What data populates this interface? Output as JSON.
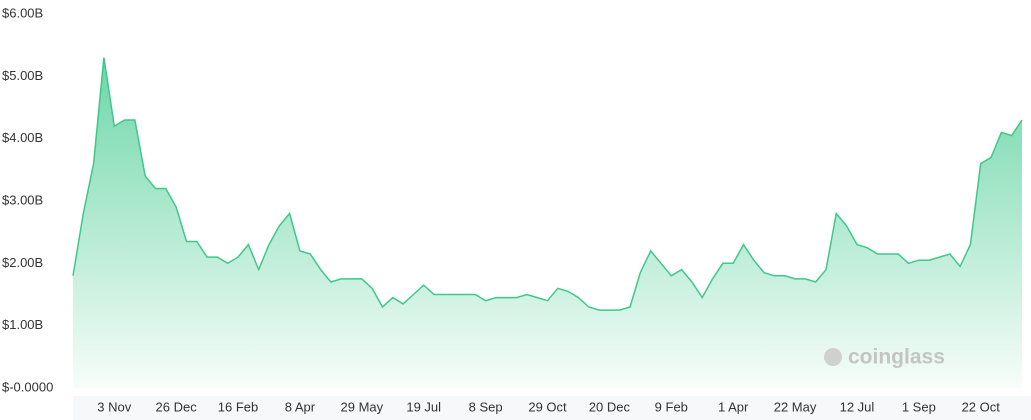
{
  "chart_data": {
    "type": "area",
    "categories": [
      null,
      null,
      null,
      null,
      "3 Nov",
      null,
      null,
      null,
      null,
      null,
      "26 Dec",
      null,
      null,
      null,
      null,
      null,
      "16 Feb",
      null,
      null,
      null,
      null,
      null,
      "8 Apr",
      null,
      null,
      null,
      null,
      null,
      "29 May",
      null,
      null,
      null,
      null,
      null,
      "19 Jul",
      null,
      null,
      null,
      null,
      null,
      "8 Sep",
      null,
      null,
      null,
      null,
      null,
      "29 Oct",
      null,
      null,
      null,
      null,
      null,
      "20 Dec",
      null,
      null,
      null,
      null,
      null,
      "9 Feb",
      null,
      null,
      null,
      null,
      null,
      "1 Apr",
      null,
      null,
      null,
      null,
      null,
      "22 May",
      null,
      null,
      null,
      null,
      null,
      "12 Jul",
      null,
      null,
      null,
      null,
      null,
      "1 Sep",
      null,
      null,
      null,
      null,
      null,
      "22 Oct",
      null,
      null,
      null,
      null
    ],
    "values": [
      1.8,
      2.8,
      3.6,
      5.3,
      4.2,
      4.3,
      4.3,
      3.4,
      3.2,
      3.2,
      2.9,
      2.35,
      2.35,
      2.1,
      2.1,
      2.0,
      2.1,
      2.3,
      1.9,
      2.3,
      2.6,
      2.8,
      2.2,
      2.15,
      1.9,
      1.7,
      1.75,
      1.75,
      1.75,
      1.6,
      1.3,
      1.45,
      1.35,
      1.5,
      1.65,
      1.5,
      1.5,
      1.5,
      1.5,
      1.5,
      1.4,
      1.45,
      1.45,
      1.45,
      1.5,
      1.45,
      1.4,
      1.6,
      1.55,
      1.45,
      1.3,
      1.25,
      1.25,
      1.25,
      1.3,
      1.85,
      2.2,
      2.0,
      1.8,
      1.9,
      1.7,
      1.45,
      1.75,
      2.0,
      2.0,
      2.3,
      2.05,
      1.85,
      1.8,
      1.8,
      1.75,
      1.75,
      1.7,
      1.9,
      2.8,
      2.6,
      2.3,
      2.25,
      2.15,
      2.15,
      2.15,
      2.0,
      2.05,
      2.05,
      2.1,
      2.15,
      1.95,
      2.3,
      3.6,
      3.7,
      4.1,
      4.05,
      4.3
    ],
    "color": "#3cc98a",
    "ylim": [
      0,
      6
    ],
    "yticks": [
      {
        "value": 0,
        "label": "$-0.0000"
      },
      {
        "value": 1,
        "label": "$1.00B"
      },
      {
        "value": 2,
        "label": "$2.00B"
      },
      {
        "value": 3,
        "label": "$3.00B"
      },
      {
        "value": 4,
        "label": "$4.00B"
      },
      {
        "value": 5,
        "label": "$5.00B"
      },
      {
        "value": 6,
        "label": "$6.00B"
      }
    ],
    "grid": false,
    "watermark": "coinglass"
  }
}
